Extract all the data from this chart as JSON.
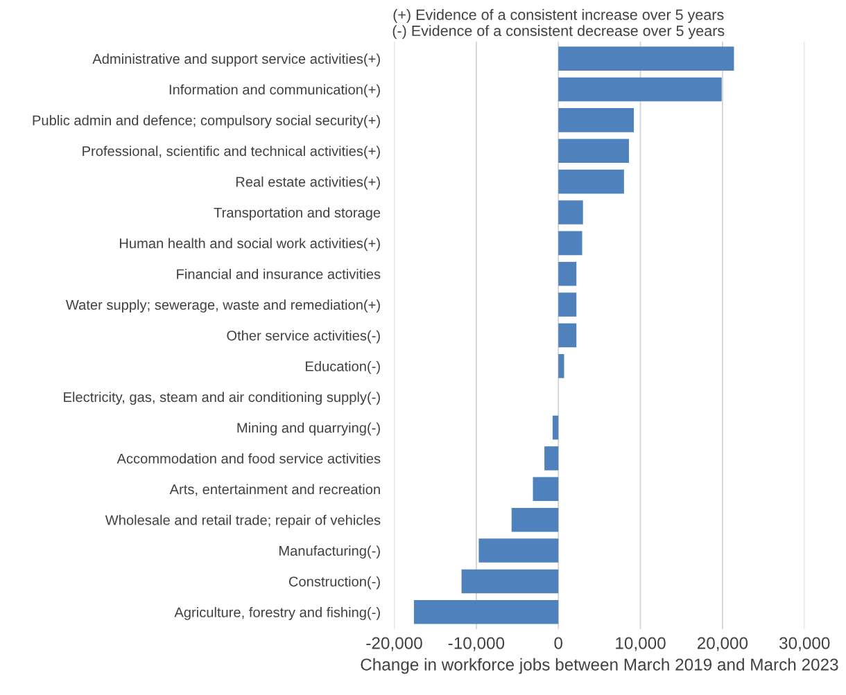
{
  "chart_data": {
    "type": "bar",
    "orientation": "horizontal",
    "title": "(+) Evidence of a consistent increase over 5 years\n(-) Evidence of a consistent decrease over 5 years",
    "xlabel": "Change in workforce jobs between March 2019 and March 2023",
    "categories": [
      "Administrative and support service activities(+)",
      "Information and communication(+)",
      "Public admin and defence; compulsory social security(+)",
      "Professional, scientific and technical activities(+)",
      "Real estate activities(+)",
      "Transportation and storage",
      "Human health and social work activities(+)",
      "Financial and insurance activities",
      "Water supply; sewerage, waste and remediation(+)",
      "Other service activities(-)",
      "Education(-)",
      "Electricity, gas, steam and air conditioning supply(-)",
      "Mining and quarrying(-)",
      "Accommodation and food service activities",
      "Arts, entertainment and recreation",
      "Wholesale and retail trade; repair of vehicles",
      "Manufacturing(-)",
      "Construction(-)",
      "Agriculture, forestry and fishing(-)"
    ],
    "values": [
      21400,
      19900,
      9200,
      8600,
      8000,
      3000,
      2900,
      2200,
      2200,
      2200,
      700,
      0,
      -700,
      -1700,
      -3100,
      -5700,
      -9700,
      -11800,
      -17600
    ],
    "color": "#4f81bd",
    "xlim": [
      -20000,
      30000
    ],
    "xticks": [
      {
        "value": -20000,
        "label": "-20,000"
      },
      {
        "value": -10000,
        "label": "-10,000"
      },
      0,
      {
        "value": 10000,
        "label": "10,000"
      },
      {
        "value": 20000,
        "label": "20,000"
      },
      {
        "value": 30000,
        "label": "30,000"
      }
    ],
    "grid": "x"
  }
}
